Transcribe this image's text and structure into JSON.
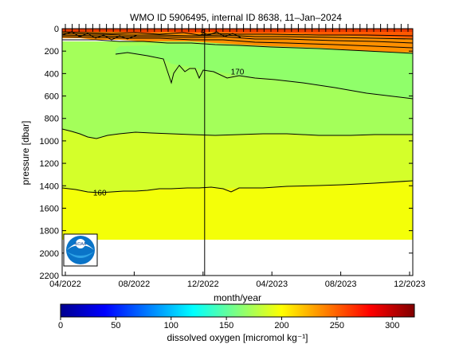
{
  "chart_data": {
    "type": "heatmap",
    "title": "WMO ID 5906495, internal ID 8638, 11–Jan–2024",
    "xlabel": "month/year",
    "ylabel": "pressure [dbar]",
    "x_ticks": [
      "04/2022",
      "08/2022",
      "12/2022",
      "04/2023",
      "08/2023",
      "12/2023"
    ],
    "y_ticks": [
      0,
      200,
      400,
      600,
      800,
      1000,
      1200,
      1400,
      1600,
      1800,
      2000,
      2200
    ],
    "ylim": [
      2200,
      0
    ],
    "y_reversed": true,
    "data_range": {
      "start": "04/2022",
      "end": "12/2023",
      "pressure_bottom": 1900
    },
    "contour_labels": [
      {
        "text": "170",
        "x": "02/2023",
        "y": 380
      },
      {
        "text": "160",
        "x": "06/2022",
        "y": 1460
      },
      {
        "text": "2",
        "x": "12/2022",
        "y": 30
      }
    ],
    "contour_levels": [
      160,
      170,
      180,
      200,
      220,
      240,
      260
    ],
    "vertical_line_x": "12/2022",
    "colorbar": {
      "label": "dissolved oxygen [micromol kg⁻¹]",
      "ticks": [
        0,
        50,
        100,
        150,
        200,
        250,
        300
      ],
      "range": [
        0,
        320
      ],
      "colormap": "jet"
    },
    "field_colors": {
      "surface": "#ff5a00",
      "upper": "#ff9000",
      "mid": "#a4ff5a",
      "deep": "#d4ff2a",
      "bottom": "#f4ff08"
    },
    "logo": "noaa-logo"
  }
}
